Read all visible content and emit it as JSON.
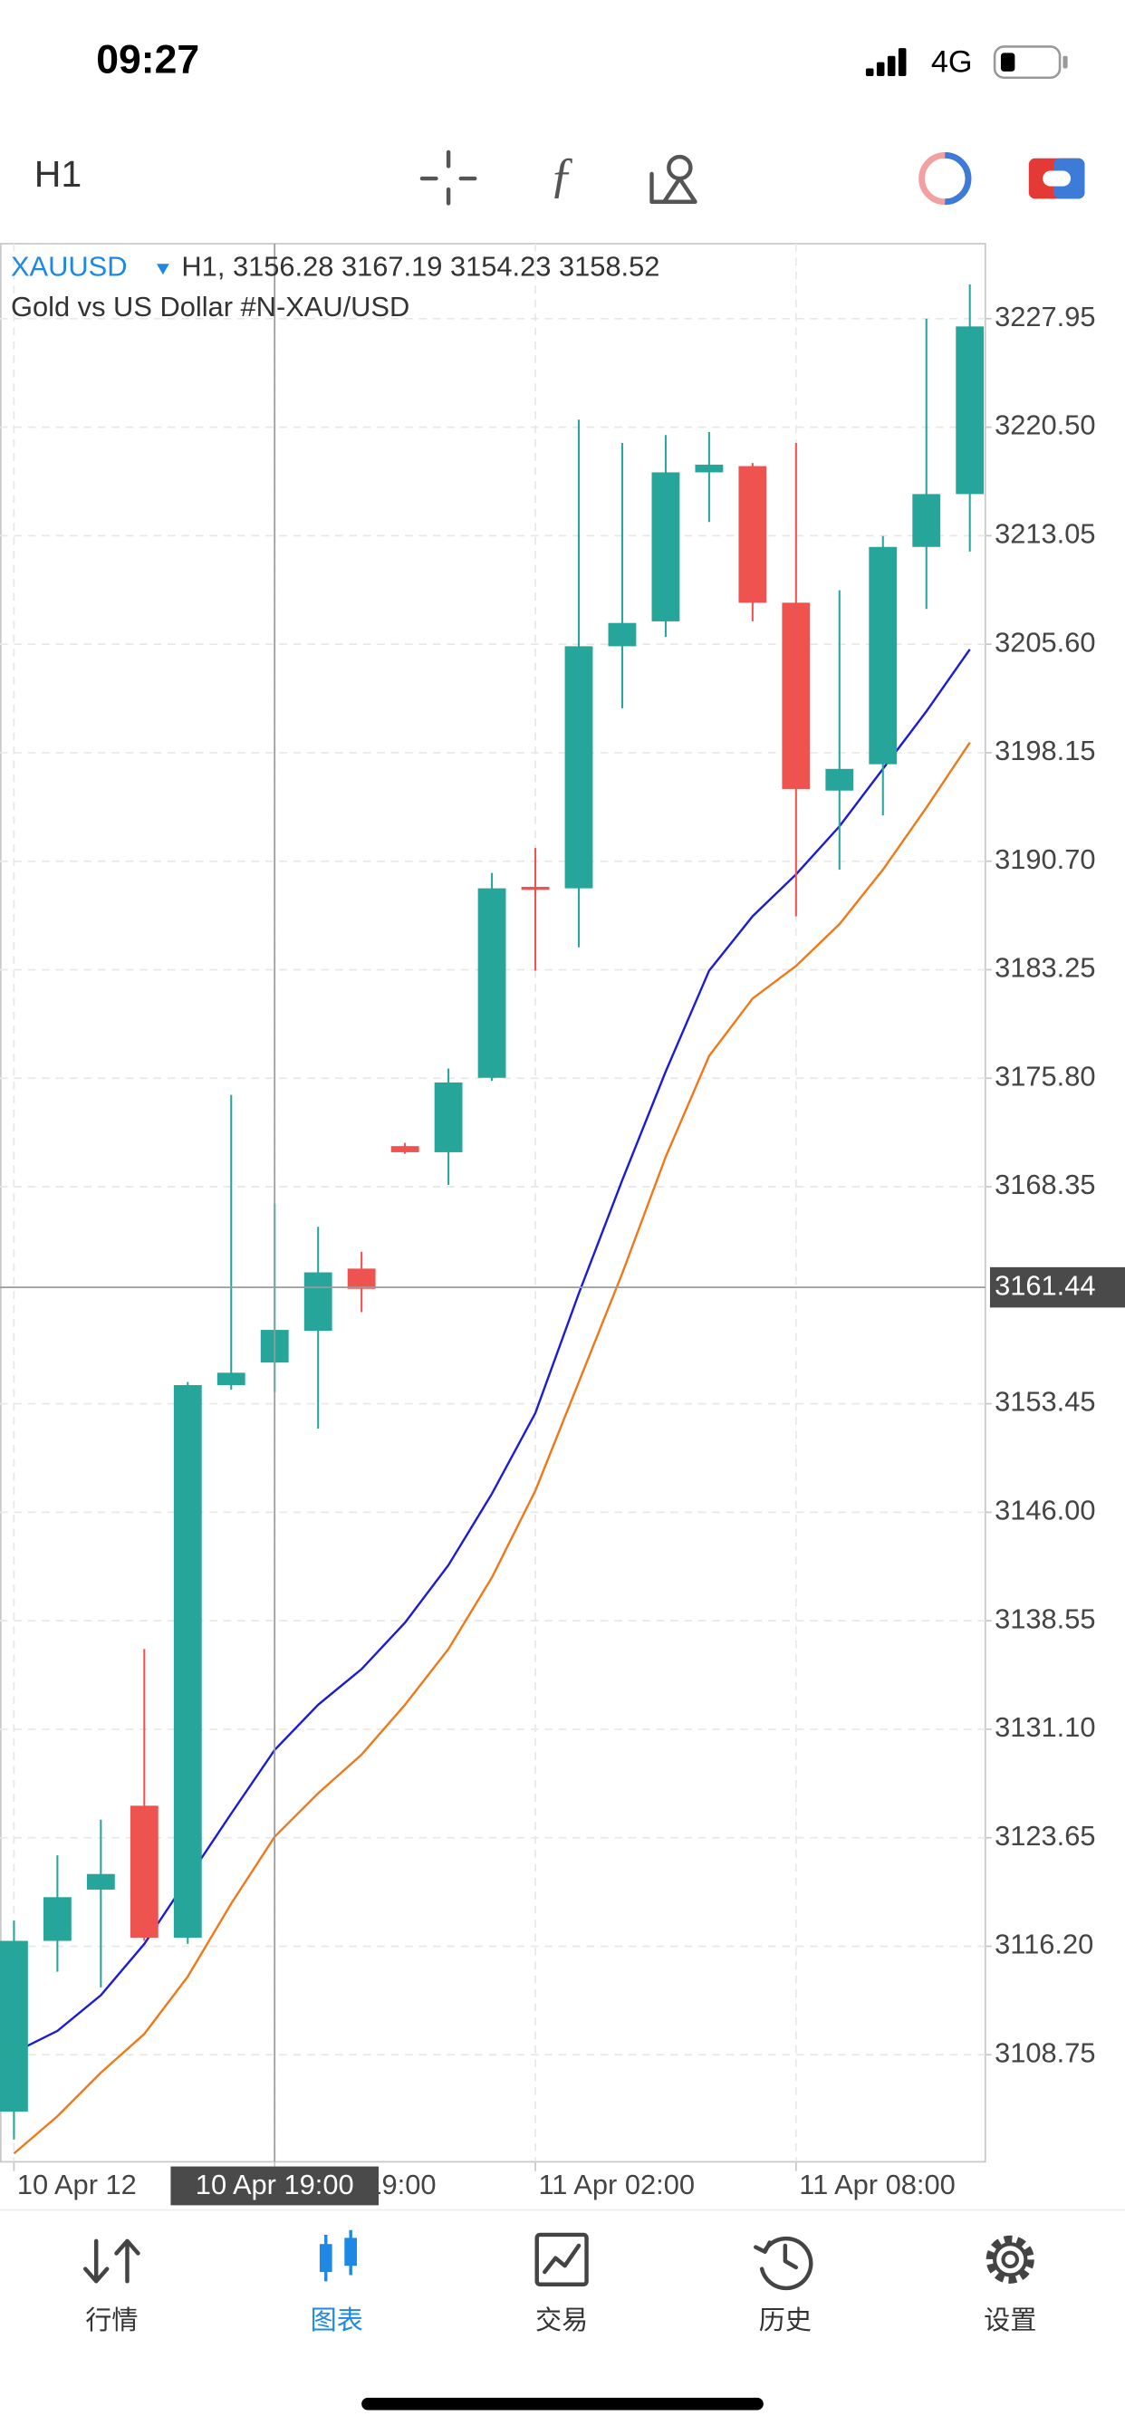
{
  "status_bar": {
    "time": "09:27",
    "network": "4G"
  },
  "toolbar": {
    "timeframe": "H1"
  },
  "chart_data": {
    "type": "candlestick",
    "symbol": "XAUUSD",
    "ohlc_text": "H1, 3156.28 3167.19 3154.23 3158.52",
    "description": "Gold vs US Dollar #N-XAU/USD",
    "categories": [
      "10 Apr 12",
      null,
      null,
      null,
      null,
      null,
      "10 Apr 19:00",
      null,
      null,
      null,
      null,
      null,
      "11 Apr 02:00",
      null,
      null,
      null,
      null,
      null,
      "11 Apr 08:00",
      null,
      null,
      null,
      null
    ],
    "open": [
      3104.85,
      3116.57,
      3120.09,
      3125.85,
      3116.79,
      3154.73,
      3156.28,
      3158.46,
      3162.73,
      3171.14,
      3170.72,
      3175.83,
      3188.94,
      3188.84,
      3205.46,
      3207.17,
      3217.4,
      3217.83,
      3208.45,
      3195.55,
      3197.36,
      3212.28,
      3215.91
    ],
    "high": [
      3117.96,
      3122.44,
      3124.89,
      3136.61,
      3154.94,
      3174.66,
      3167.19,
      3165.6,
      3163.89,
      3171.36,
      3176.47,
      3189.9,
      3191.61,
      3221.02,
      3219.42,
      3219.96,
      3220.17,
      3218.04,
      3219.42,
      3209.3,
      3213.03,
      3227.95,
      3230.3
    ],
    "low": [
      3102.93,
      3114.45,
      3113.38,
      3116.57,
      3116.36,
      3154.41,
      3154.23,
      3151.74,
      3159.74,
      3170.61,
      3168.48,
      3175.62,
      3183.19,
      3184.79,
      3201.2,
      3206.1,
      3213.99,
      3207.17,
      3186.92,
      3190.12,
      3193.85,
      3208.02,
      3211.96
    ],
    "close": [
      3116.57,
      3119.57,
      3121.16,
      3116.79,
      3154.73,
      3155.58,
      3158.52,
      3162.47,
      3161.34,
      3170.72,
      3175.51,
      3188.84,
      3188.73,
      3205.46,
      3207.06,
      3217.4,
      3217.93,
      3208.45,
      3195.66,
      3197.04,
      3212.28,
      3215.91,
      3227.42
    ],
    "up_color": "#26a69a",
    "down_color": "#ef5350",
    "lines": [
      {
        "color": "#1a1adb",
        "values": [
          3108.9,
          3110.39,
          3112.84,
          3116.36,
          3120.84,
          3125.31,
          3129.68,
          3132.78,
          3135.23,
          3138.42,
          3142.37,
          3147.27,
          3152.81,
          3161.02,
          3168.8,
          3176.26,
          3183.19,
          3186.92,
          3189.8,
          3193.1,
          3197.04,
          3200.99,
          3205.25
        ]
      },
      {
        "color": "#f07818",
        "values": [
          3101.97,
          3104.53,
          3107.52,
          3110.18,
          3114.12,
          3119.13,
          3123.72,
          3126.7,
          3129.36,
          3132.78,
          3136.61,
          3141.52,
          3147.48,
          3154.94,
          3162.4,
          3170.4,
          3177.33,
          3181.27,
          3183.51,
          3186.38,
          3190.12,
          3194.38,
          3198.85
        ]
      }
    ],
    "ylim": [
      3101.4,
      3233.1
    ],
    "yticks": [
      3108.75,
      {
        "value": 3116.2,
        "label": "3116.20"
      },
      3123.65,
      {
        "value": 3131.1,
        "label": "3131.10"
      },
      3138.55,
      {
        "value": 3146,
        "label": "3146.00"
      },
      3153.45,
      3168.35,
      {
        "value": 3175.8,
        "label": "3175.80"
      },
      3183.25,
      {
        "value": 3190.7,
        "label": "3190.70"
      },
      3198.15,
      {
        "value": 3205.6,
        "label": "3205.60"
      },
      3213.05,
      {
        "value": 3220.5,
        "label": "3220.50"
      },
      3227.95
    ],
    "grid": true,
    "crosshair": {
      "time": "10 Apr 19:00",
      "price": 3161.44
    }
  },
  "tabs": {
    "labels": [
      "行情",
      "图表",
      "交易",
      "历史",
      "设置"
    ],
    "active": 1
  }
}
